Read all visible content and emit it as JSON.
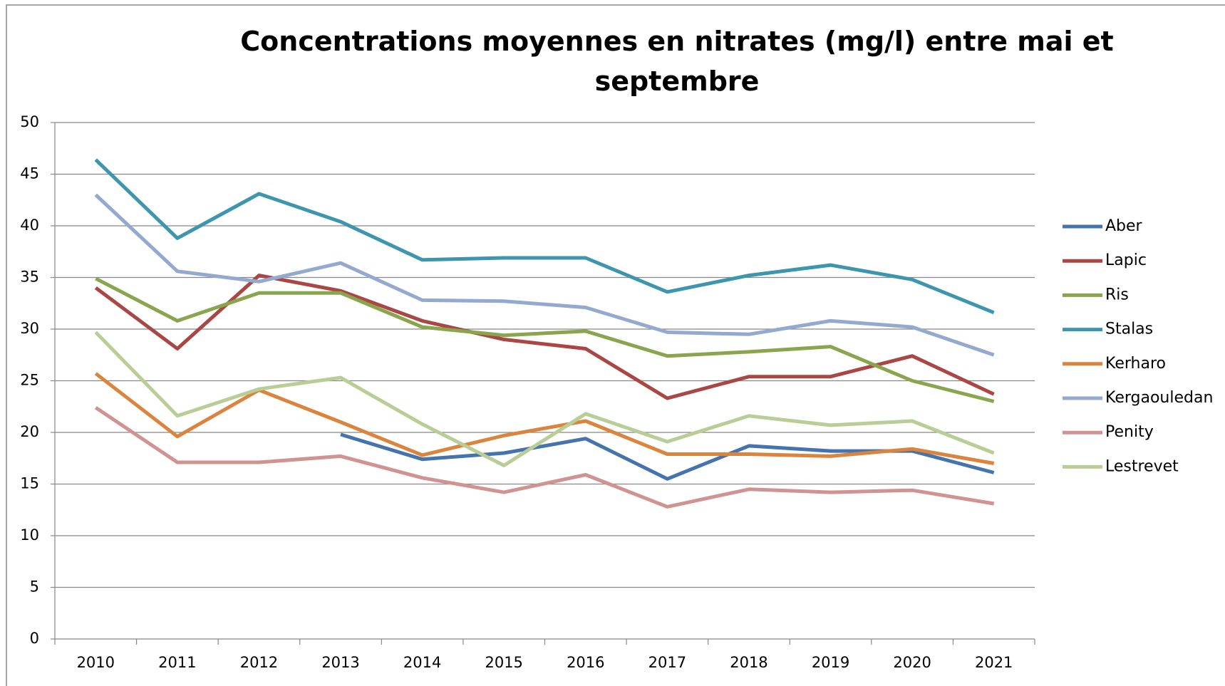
{
  "chart_data": {
    "type": "line",
    "title": "Concentrations moyennes en nitrates (mg/l) entre mai et septembre",
    "categories": [
      "2010",
      "2011",
      "2012",
      "2013",
      "2014",
      "2015",
      "2016",
      "2017",
      "2018",
      "2019",
      "2020",
      "2021"
    ],
    "series": [
      {
        "name": "Aber",
        "color": "#4573ad",
        "values": [
          null,
          null,
          null,
          19.8,
          17.4,
          18.0,
          19.4,
          15.5,
          18.7,
          18.2,
          18.2,
          16.1
        ]
      },
      {
        "name": "Lapic",
        "color": "#aa4643",
        "values": [
          34.0,
          28.1,
          35.2,
          33.7,
          30.8,
          29.0,
          28.1,
          23.3,
          25.4,
          25.4,
          27.4,
          23.7
        ]
      },
      {
        "name": "Ris",
        "color": "#89a54e",
        "values": [
          34.9,
          30.8,
          33.5,
          33.5,
          30.2,
          29.4,
          29.8,
          27.4,
          27.8,
          28.3,
          25.0,
          23.0
        ]
      },
      {
        "name": "Stalas",
        "color": "#3d96ae",
        "values": [
          46.4,
          38.8,
          43.1,
          40.4,
          36.7,
          36.9,
          36.9,
          33.6,
          35.2,
          36.2,
          34.8,
          31.6
        ]
      },
      {
        "name": "Kerharo",
        "color": "#db843d",
        "values": [
          25.7,
          19.6,
          24.1,
          21.0,
          17.8,
          19.7,
          21.1,
          17.9,
          17.9,
          17.7,
          18.4,
          17.0
        ]
      },
      {
        "name": "Kergaouledan",
        "color": "#93a9cf",
        "values": [
          43.0,
          35.6,
          34.6,
          36.4,
          32.8,
          32.7,
          32.1,
          29.7,
          29.5,
          30.8,
          30.2,
          27.5
        ]
      },
      {
        "name": "Penity",
        "color": "#d19392",
        "values": [
          22.4,
          17.1,
          17.1,
          17.7,
          15.6,
          14.2,
          15.9,
          12.8,
          14.5,
          14.2,
          14.4,
          13.1
        ]
      },
      {
        "name": "Lestrevet",
        "color": "#b9cd96",
        "values": [
          29.7,
          21.6,
          24.2,
          25.3,
          20.8,
          16.8,
          21.8,
          19.1,
          21.6,
          20.7,
          21.1,
          18.0
        ]
      }
    ],
    "ylim": [
      0,
      50
    ],
    "yticks": [
      0,
      5,
      10,
      15,
      20,
      25,
      30,
      35,
      40,
      45,
      50
    ],
    "grid": true,
    "legend": "right"
  }
}
